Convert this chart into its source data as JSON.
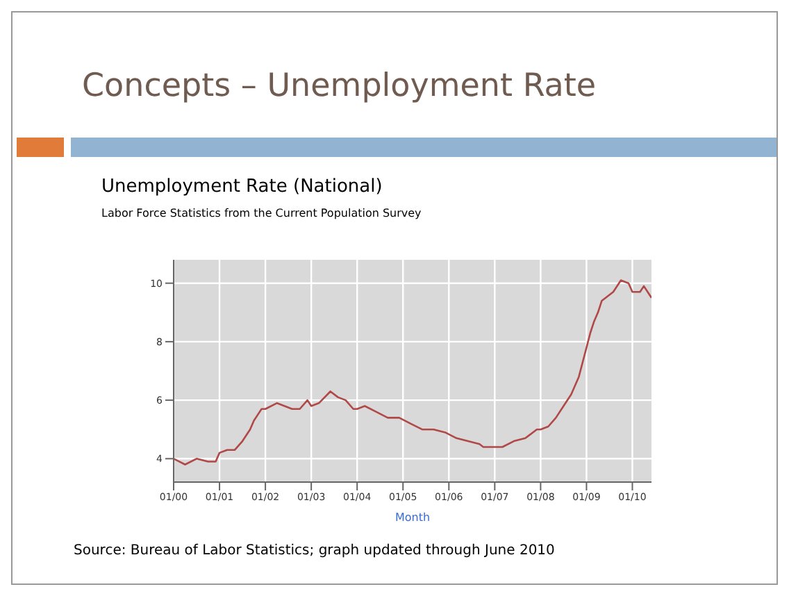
{
  "chart_data": {
    "type": "line",
    "title": "Concepts – Unemployment Rate",
    "subtitle": "Unemployment Rate (National)",
    "xlabel": "Month",
    "annotations": [
      "Labor Force Statistics from the Current Population Survey",
      "Source:  Bureau of Labor Statistics; graph updated through June 2010"
    ],
    "x": [
      "2000-01",
      "2000-04",
      "2000-07",
      "2000-10",
      "2000-12",
      "2001-01",
      "2001-03",
      "2001-05",
      "2001-07",
      "2001-09",
      "2001-10",
      "2001-11",
      "2001-12",
      "2002-01",
      "2002-04",
      "2002-06",
      "2002-08",
      "2002-10",
      "2002-12",
      "2003-01",
      "2003-03",
      "2003-06",
      "2003-08",
      "2003-10",
      "2003-12",
      "2004-01",
      "2004-03",
      "2004-06",
      "2004-09",
      "2004-12",
      "2005-03",
      "2005-06",
      "2005-09",
      "2005-12",
      "2006-03",
      "2006-06",
      "2006-09",
      "2006-10",
      "2006-12",
      "2007-03",
      "2007-06",
      "2007-09",
      "2007-12",
      "2008-01",
      "2008-03",
      "2008-05",
      "2008-07",
      "2008-09",
      "2008-11",
      "2008-12",
      "2009-01",
      "2009-02",
      "2009-03",
      "2009-04",
      "2009-05",
      "2009-06",
      "2009-08",
      "2009-10",
      "2009-12",
      "2010-01",
      "2010-03",
      "2010-04",
      "2010-05",
      "2010-06"
    ],
    "series": [
      {
        "color": "#b04848",
        "values": [
          4.0,
          3.8,
          4.0,
          3.9,
          3.9,
          4.2,
          4.3,
          4.3,
          4.6,
          5.0,
          5.3,
          5.5,
          5.7,
          5.7,
          5.9,
          5.8,
          5.7,
          5.7,
          6.0,
          5.8,
          5.9,
          6.3,
          6.1,
          6.0,
          5.7,
          5.7,
          5.8,
          5.6,
          5.4,
          5.4,
          5.2,
          5.0,
          5.0,
          4.9,
          4.7,
          4.6,
          4.5,
          4.4,
          4.4,
          4.4,
          4.6,
          4.7,
          5.0,
          5.0,
          5.1,
          5.4,
          5.8,
          6.2,
          6.8,
          7.3,
          7.8,
          8.3,
          8.7,
          9.0,
          9.4,
          9.5,
          9.7,
          10.1,
          10.0,
          9.7,
          9.7,
          9.9,
          9.7,
          9.5
        ]
      }
    ],
    "xlim": [
      "2000-01",
      "2010-06"
    ],
    "xticks": [
      {
        "value": "2000-01",
        "label": "01/00"
      },
      {
        "value": "2001-01",
        "label": "01/01"
      },
      {
        "value": "2002-01",
        "label": "01/02"
      },
      {
        "value": "2003-01",
        "label": "01/03"
      },
      {
        "value": "2004-01",
        "label": "01/04"
      },
      {
        "value": "2005-01",
        "label": "01/05"
      },
      {
        "value": "2006-01",
        "label": "01/06"
      },
      {
        "value": "2007-01",
        "label": "01/07"
      },
      {
        "value": "2008-01",
        "label": "01/08"
      },
      {
        "value": "2009-01",
        "label": "01/09"
      },
      {
        "value": "2010-01",
        "label": "01/10"
      }
    ],
    "ylim": [
      3.2,
      10.8
    ],
    "yticks": [
      4,
      6,
      8,
      10
    ],
    "grid": true,
    "legend": false,
    "marker": "none",
    "line_style": "solid"
  }
}
